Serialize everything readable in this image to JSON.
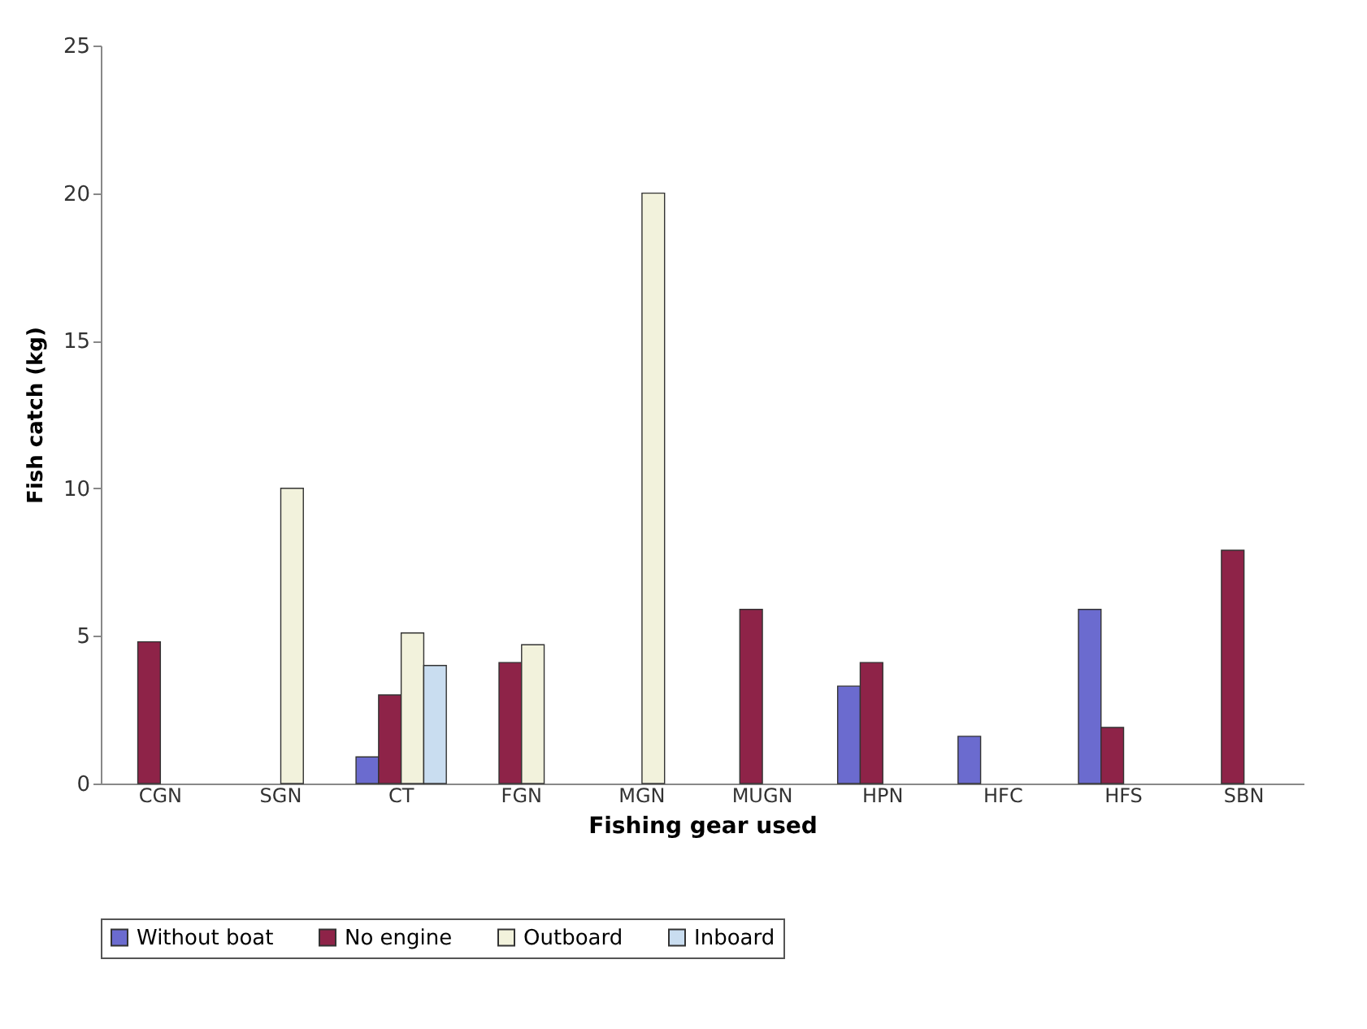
{
  "chart_data": {
    "type": "bar",
    "xlabel": "Fishing gear used",
    "ylabel": "Fish catch (kg)",
    "categories": [
      "CGN",
      "SGN",
      "CT",
      "FGN",
      "MGN",
      "MUGN",
      "HPN",
      "HFC",
      "HFS",
      "SBN"
    ],
    "series": [
      {
        "name": "Without boat",
        "color": "#6b6bcf",
        "values": [
          null,
          null,
          0.9,
          null,
          null,
          null,
          3.3,
          1.6,
          5.9,
          null
        ]
      },
      {
        "name": "No engine",
        "color": "#8e2348",
        "values": [
          4.8,
          null,
          3.0,
          4.1,
          null,
          5.9,
          4.1,
          null,
          1.9,
          7.9
        ]
      },
      {
        "name": "Outboard",
        "color": "#f2f2dc",
        "values": [
          null,
          10,
          5.1,
          4.7,
          20,
          null,
          null,
          null,
          null,
          null
        ]
      },
      {
        "name": "Inboard",
        "color": "#c9ddf0",
        "values": [
          null,
          null,
          4.0,
          null,
          null,
          null,
          null,
          null,
          null,
          null
        ]
      }
    ],
    "ylim": [
      0,
      25
    ],
    "yticks": [
      0,
      5,
      10,
      15,
      20,
      25
    ],
    "grid": false,
    "legend": "bottom"
  }
}
